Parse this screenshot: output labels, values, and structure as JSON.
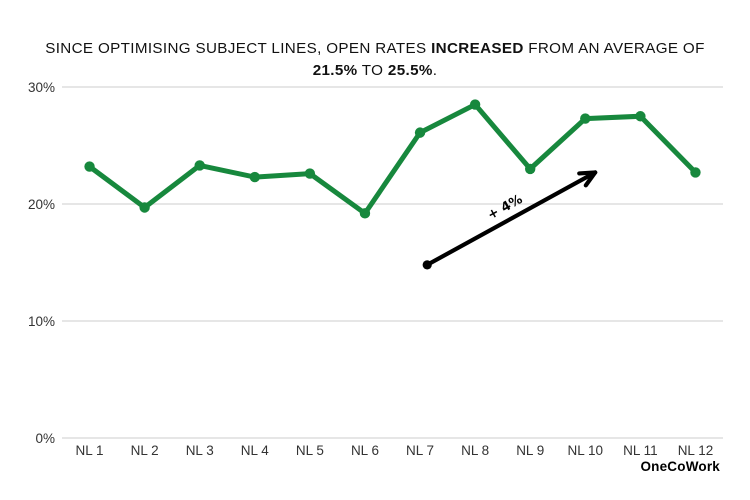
{
  "title": {
    "plain": "SINCE OPTIMISING SUBJECT LINES, OPEN RATES INCREASED FROM AN AVERAGE OF 21.5% TO 25.5%.",
    "lines": [
      [
        {
          "t": "SINCE OPTIMISING SUBJECT LINES, OPEN RATES ",
          "b": false
        },
        {
          "t": "INCREASED",
          "b": true
        },
        {
          "t": " FROM AN AVERAGE OF",
          "b": false
        }
      ],
      [
        {
          "t": "21.5%",
          "b": true
        },
        {
          "t": " TO ",
          "b": false
        },
        {
          "t": "25.5%",
          "b": true
        },
        {
          "t": ".",
          "b": false
        }
      ]
    ]
  },
  "footer": {
    "brand": "OneCoWork"
  },
  "chart_data": {
    "type": "line",
    "title": "SINCE OPTIMISING SUBJECT LINES, OPEN RATES INCREASED FROM AN AVERAGE OF 21.5% TO 25.5%.",
    "categories": [
      "NL 1",
      "NL 2",
      "NL 3",
      "NL 4",
      "NL 5",
      "NL 6",
      "NL 7",
      "NL 8",
      "NL 9",
      "NL 10",
      "NL 11",
      "NL 12"
    ],
    "values": [
      23.2,
      19.7,
      23.3,
      22.3,
      22.6,
      19.2,
      26.1,
      28.5,
      23.0,
      27.3,
      27.5,
      22.7
    ],
    "xlabel": "",
    "ylabel": "",
    "ylim": [
      0,
      30
    ],
    "yticks": [
      {
        "value": 0,
        "label": "0%"
      },
      {
        "value": 10,
        "label": "10%"
      },
      {
        "value": 20,
        "label": "20%"
      },
      {
        "value": 30,
        "label": "30%"
      }
    ],
    "grid": true,
    "legend": "none",
    "annotation": {
      "label": "+ 4%",
      "from": {
        "index": 6.13,
        "value": 14.8
      },
      "to": {
        "index": 9.18,
        "value": 22.7
      }
    },
    "colors": {
      "line": "#17883D",
      "grid": "#D8D8D8",
      "annotation": "#000000",
      "tick_text": "#333333"
    }
  }
}
